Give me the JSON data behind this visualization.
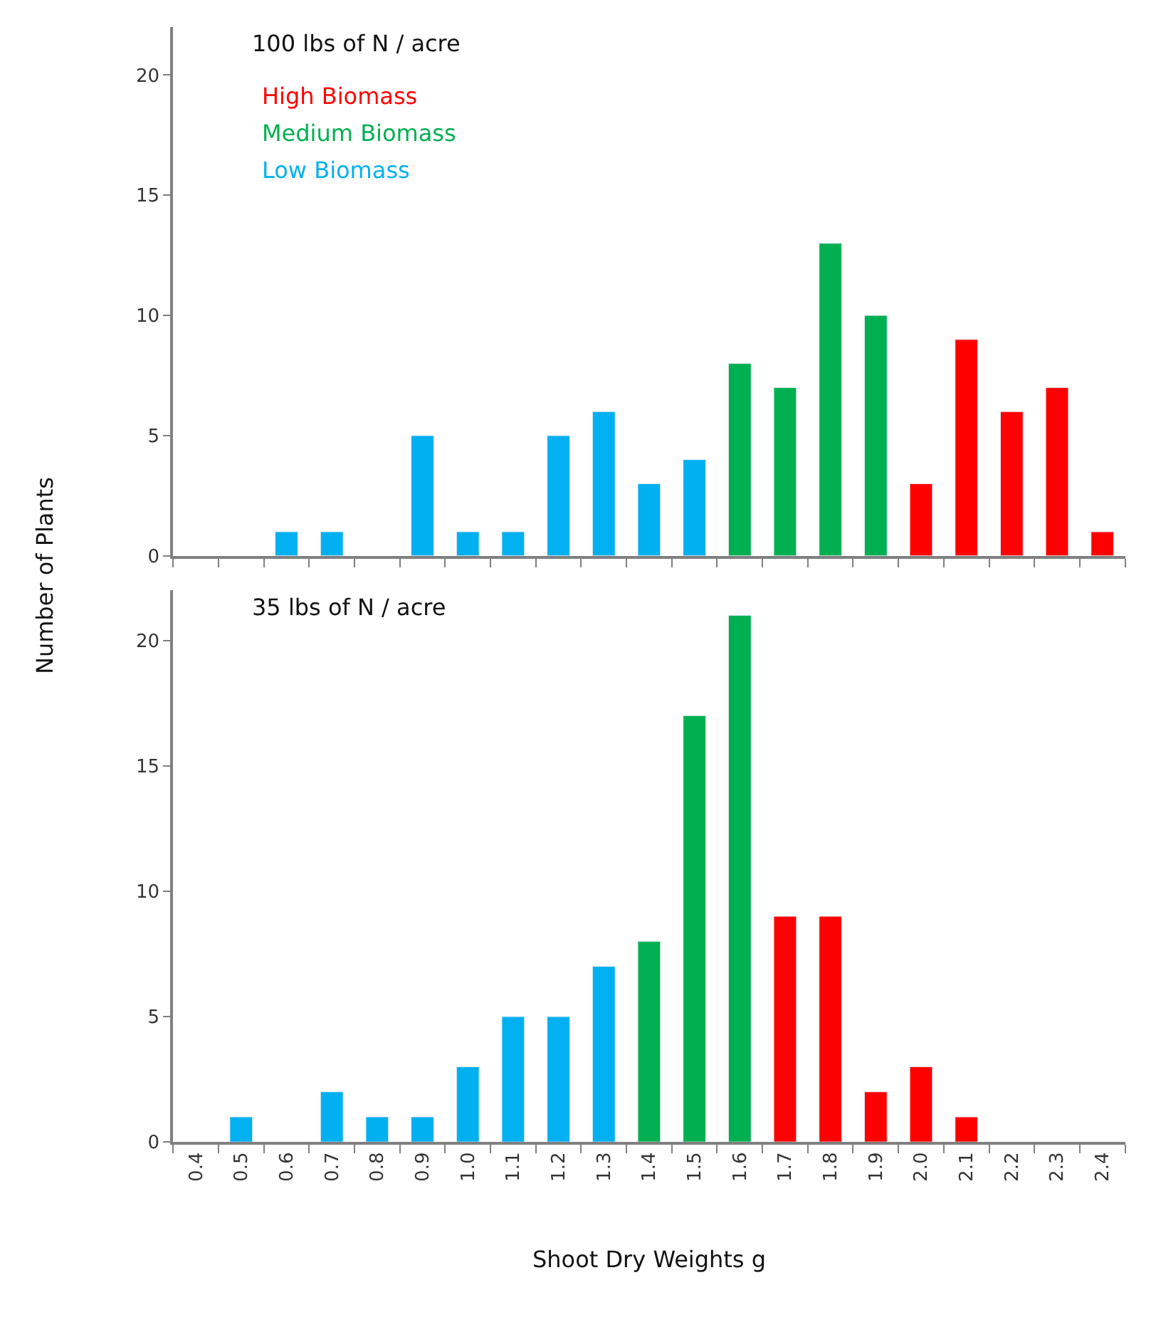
{
  "chart_data": [
    {
      "type": "bar",
      "title": "100 lbs of N / acre",
      "ylabel": "Number of Plants",
      "categories": [
        "0.4",
        "0.5",
        "0.6",
        "0.7",
        "0.8",
        "0.9",
        "1.0",
        "1.1",
        "1.2",
        "1.3",
        "1.4",
        "1.5",
        "1.6",
        "1.7",
        "1.8",
        "1.9",
        "2.0",
        "2.1",
        "2.2",
        "2.3",
        "2.4"
      ],
      "series": [
        {
          "name": "High Biomass",
          "color": "#ff0000",
          "values": [
            null,
            null,
            null,
            null,
            null,
            null,
            null,
            null,
            null,
            null,
            null,
            null,
            null,
            null,
            null,
            null,
            3,
            9,
            6,
            7,
            1
          ]
        },
        {
          "name": "Medium Biomass",
          "color": "#00b050",
          "values": [
            null,
            null,
            null,
            null,
            null,
            null,
            null,
            null,
            null,
            null,
            null,
            null,
            8,
            7,
            13,
            10,
            null,
            null,
            null,
            null,
            null
          ]
        },
        {
          "name": "Low Biomass",
          "color": "#00b0f0",
          "values": [
            null,
            null,
            1,
            1,
            null,
            5,
            1,
            1,
            5,
            6,
            3,
            4,
            null,
            null,
            null,
            null,
            null,
            null,
            null,
            null,
            null
          ]
        }
      ],
      "ylim": [
        0,
        22
      ],
      "yticks": [
        0,
        5,
        10,
        15,
        20
      ],
      "legend": "top left",
      "tick_labels": "y"
    },
    {
      "type": "bar",
      "title": "35 lbs of N / acre",
      "xlabel": "Shoot Dry Weights g",
      "categories": [
        "0.4",
        "0.5",
        "0.6",
        "0.7",
        "0.8",
        "0.9",
        "1.0",
        "1.1",
        "1.2",
        "1.3",
        "1.4",
        "1.5",
        "1.6",
        "1.7",
        "1.8",
        "1.9",
        "2.0",
        "2.1",
        "2.2",
        "2.3",
        "2.4"
      ],
      "series": [
        {
          "color": "#ff0000",
          "values": [
            null,
            null,
            null,
            null,
            null,
            null,
            null,
            null,
            null,
            null,
            null,
            null,
            null,
            9,
            9,
            2,
            3,
            1,
            null,
            null,
            null
          ]
        },
        {
          "color": "#00b050",
          "values": [
            null,
            null,
            null,
            null,
            null,
            null,
            null,
            null,
            null,
            null,
            8,
            17,
            21,
            null,
            null,
            null,
            null,
            null,
            null,
            null,
            null
          ]
        },
        {
          "color": "#00b0f0",
          "values": [
            null,
            1,
            null,
            2,
            1,
            1,
            3,
            5,
            5,
            7,
            null,
            null,
            null,
            null,
            null,
            null,
            null,
            null,
            null,
            null,
            null
          ]
        }
      ],
      "ylim": [
        0,
        22
      ],
      "yticks": [
        0,
        5,
        10,
        15,
        20
      ]
    }
  ]
}
